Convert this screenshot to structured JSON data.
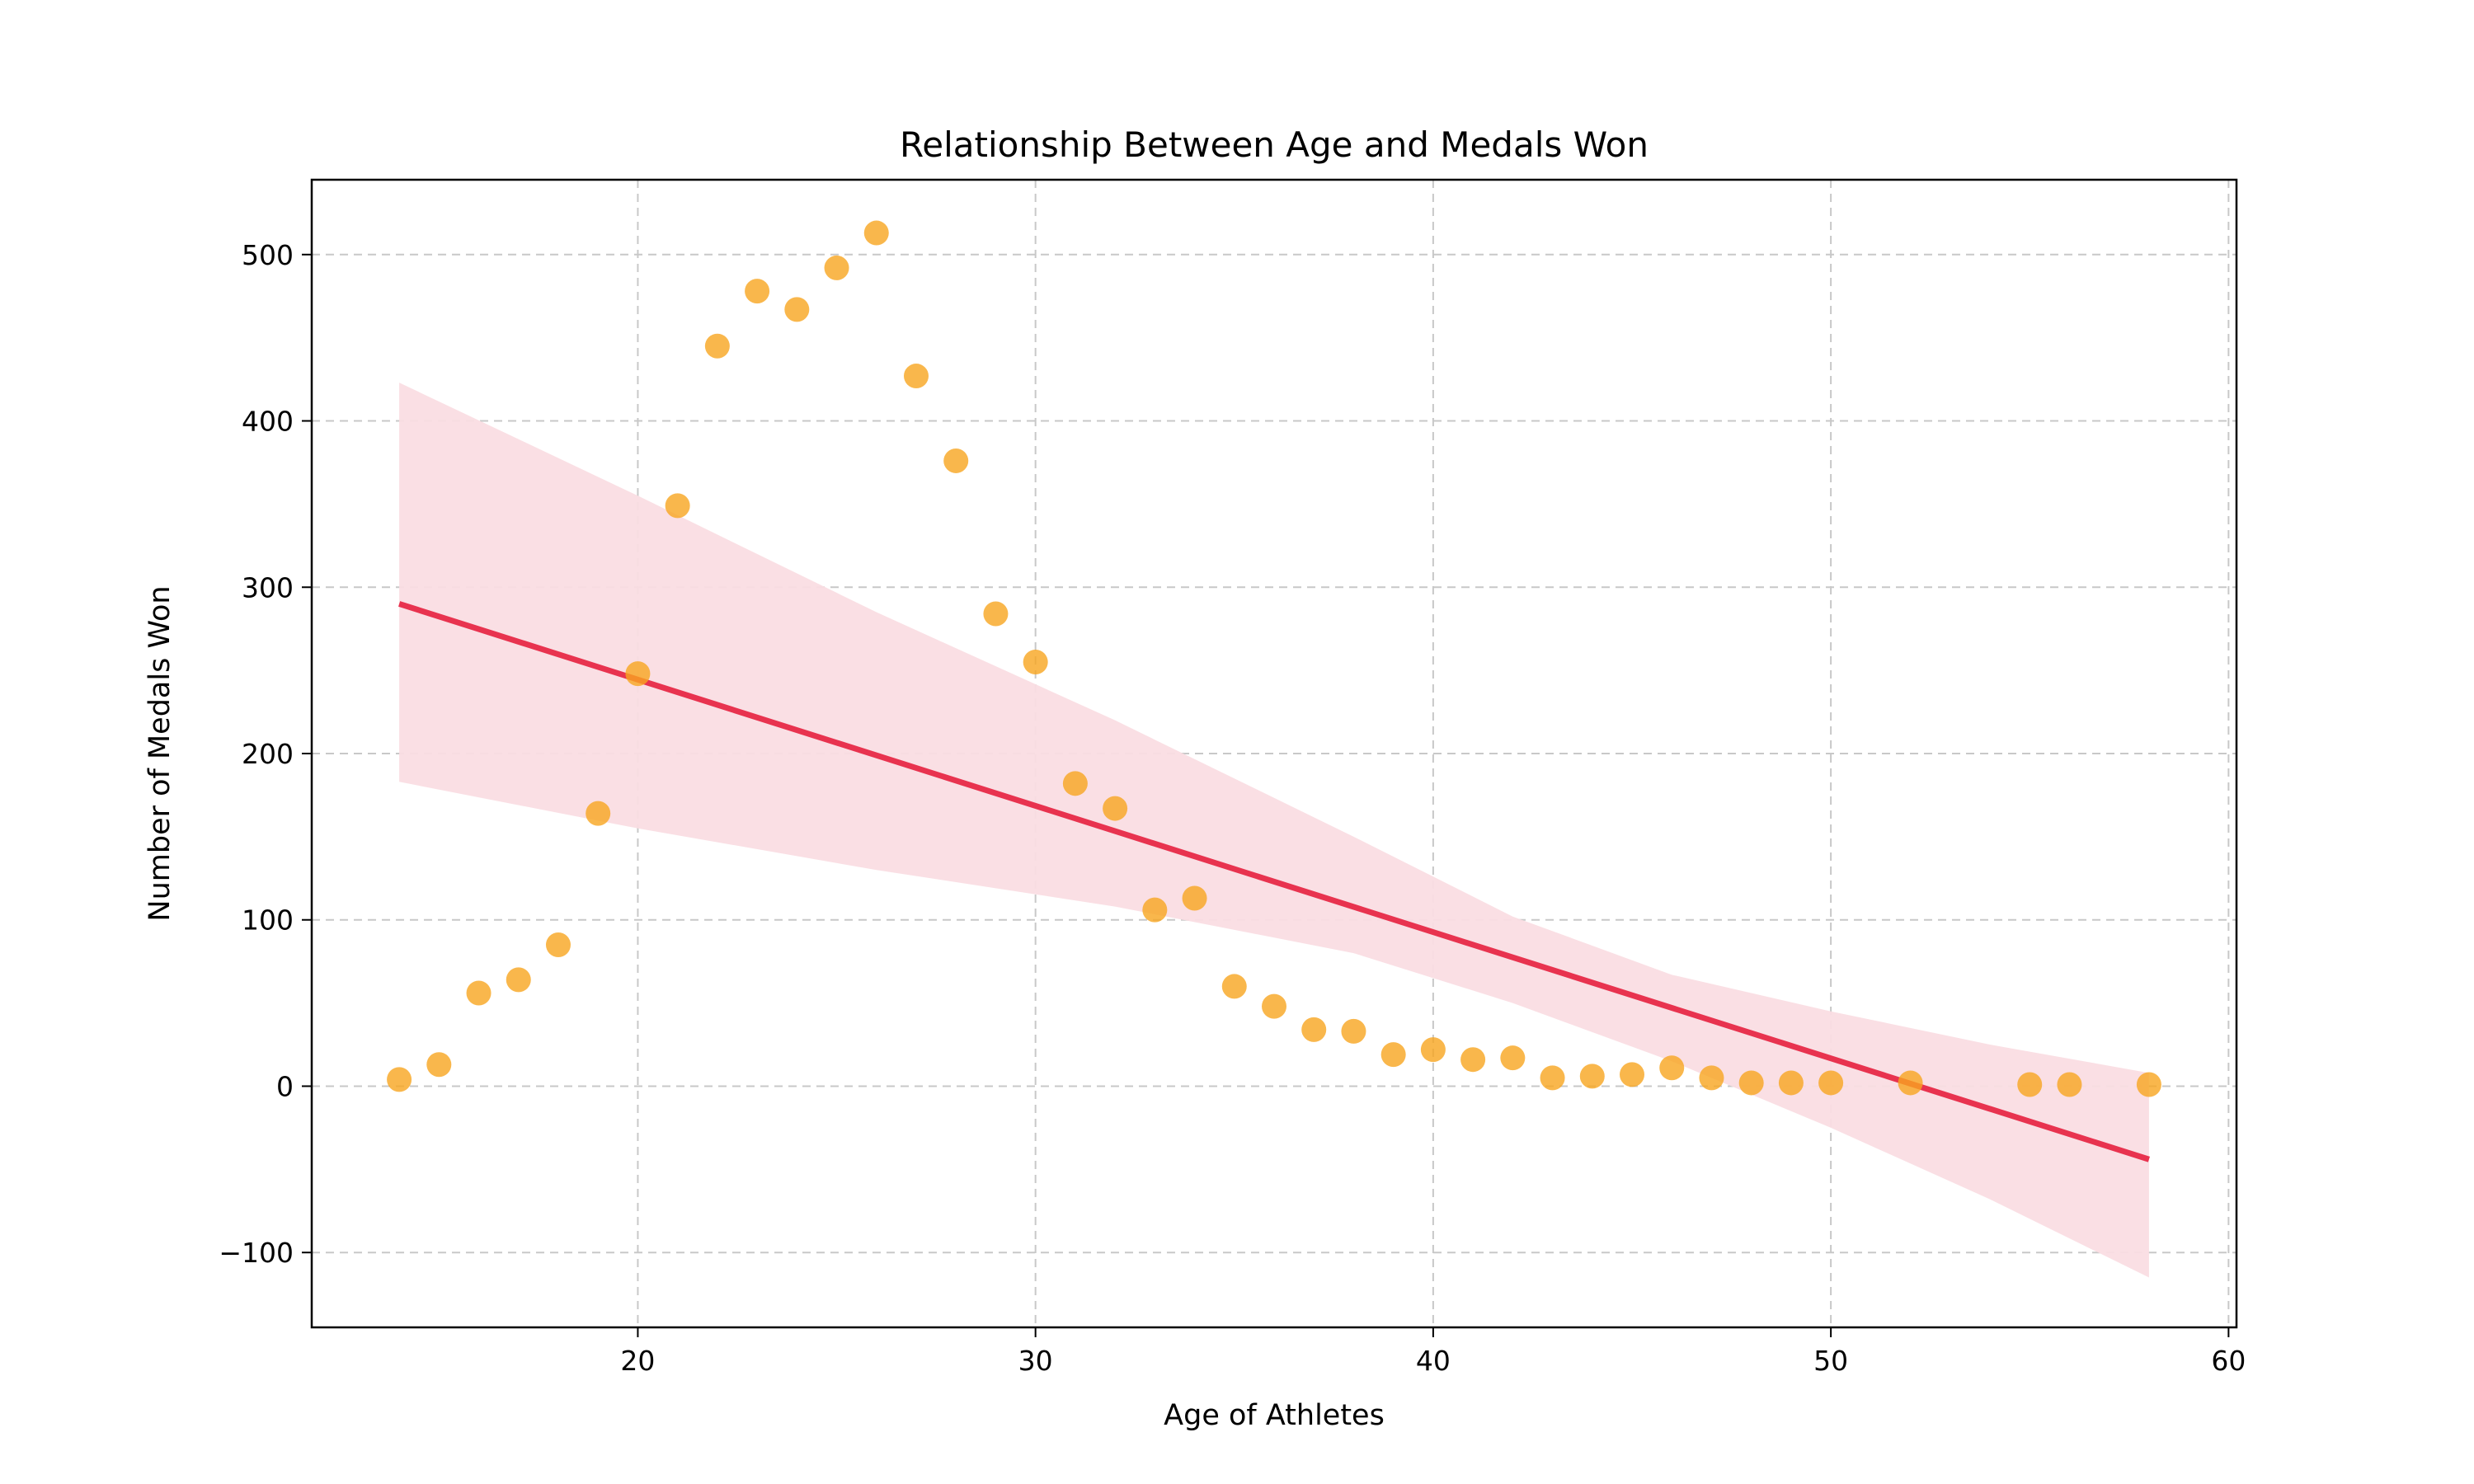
{
  "chart_data": {
    "type": "scatter",
    "title": "Relationship Between Age and Medals Won",
    "xlabel": "Age of Athletes",
    "ylabel": "Number of Medals Won",
    "xlim": [
      11.8,
      60.2
    ],
    "ylim": [
      -145,
      545
    ],
    "xticks": [
      20,
      30,
      40,
      50,
      60
    ],
    "yticks": [
      -100,
      0,
      100,
      200,
      300,
      400,
      500
    ],
    "grid": true,
    "colors": {
      "points": "#f8a51f",
      "regression_line": "#e8334f",
      "confidence_band": "#fadde3",
      "grid": "#c8c8c8"
    },
    "points": [
      {
        "x": 14,
        "y": 4
      },
      {
        "x": 15,
        "y": 13
      },
      {
        "x": 16,
        "y": 56
      },
      {
        "x": 17,
        "y": 64
      },
      {
        "x": 18,
        "y": 85
      },
      {
        "x": 19,
        "y": 164
      },
      {
        "x": 20,
        "y": 248
      },
      {
        "x": 21,
        "y": 349
      },
      {
        "x": 22,
        "y": 445
      },
      {
        "x": 23,
        "y": 478
      },
      {
        "x": 24,
        "y": 467
      },
      {
        "x": 25,
        "y": 492
      },
      {
        "x": 26,
        "y": 513
      },
      {
        "x": 27,
        "y": 427
      },
      {
        "x": 28,
        "y": 376
      },
      {
        "x": 29,
        "y": 284
      },
      {
        "x": 30,
        "y": 255
      },
      {
        "x": 31,
        "y": 182
      },
      {
        "x": 32,
        "y": 167
      },
      {
        "x": 33,
        "y": 106
      },
      {
        "x": 34,
        "y": 113
      },
      {
        "x": 35,
        "y": 60
      },
      {
        "x": 36,
        "y": 48
      },
      {
        "x": 37,
        "y": 34
      },
      {
        "x": 38,
        "y": 33
      },
      {
        "x": 39,
        "y": 19
      },
      {
        "x": 40,
        "y": 22
      },
      {
        "x": 41,
        "y": 16
      },
      {
        "x": 42,
        "y": 17
      },
      {
        "x": 43,
        "y": 5
      },
      {
        "x": 44,
        "y": 6
      },
      {
        "x": 45,
        "y": 7
      },
      {
        "x": 46,
        "y": 11
      },
      {
        "x": 47,
        "y": 5
      },
      {
        "x": 48,
        "y": 2
      },
      {
        "x": 49,
        "y": 2
      },
      {
        "x": 50,
        "y": 2
      },
      {
        "x": 52,
        "y": 2
      },
      {
        "x": 55,
        "y": 1
      },
      {
        "x": 56,
        "y": 1
      },
      {
        "x": 58,
        "y": 1
      }
    ],
    "regression": {
      "x_start": 14,
      "y_start": 290,
      "x_end": 58,
      "y_end": -44
    },
    "confidence_band": {
      "x": [
        14,
        20,
        26,
        32,
        38,
        42,
        46,
        50,
        54,
        58
      ],
      "upper": [
        423,
        355,
        285,
        220,
        150,
        102,
        67,
        45,
        25,
        8
      ],
      "lower": [
        183,
        155,
        130,
        108,
        80,
        50,
        15,
        -25,
        -68,
        -115
      ]
    }
  }
}
